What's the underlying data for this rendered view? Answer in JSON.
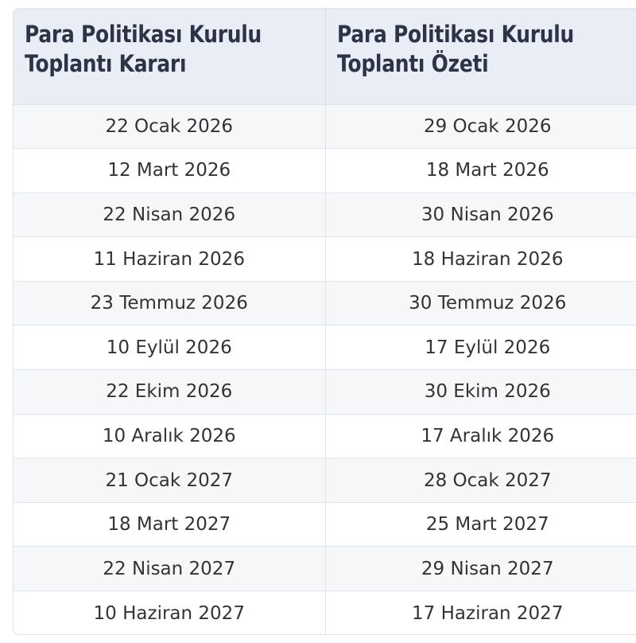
{
  "table": {
    "headers": [
      "Para Politikası Kurulu\nToplantı Kararı",
      "Para Politikası Kurulu\nToplantı Özeti"
    ],
    "rows": [
      [
        "22 Ocak 2026",
        "29 Ocak 2026"
      ],
      [
        "12 Mart 2026",
        "18 Mart 2026"
      ],
      [
        "22 Nisan 2026",
        "30 Nisan 2026"
      ],
      [
        "11 Haziran 2026",
        "18 Haziran 2026"
      ],
      [
        "23 Temmuz 2026",
        "30 Temmuz 2026"
      ],
      [
        "10 Eylül 2026",
        "17 Eylül 2026"
      ],
      [
        "22 Ekim 2026",
        "30 Ekim 2026"
      ],
      [
        "10 Aralık 2026",
        "17 Aralık 2026"
      ],
      [
        "21 Ocak 2027",
        "28 Ocak 2027"
      ],
      [
        "18 Mart 2027",
        "25 Mart 2027"
      ],
      [
        "22 Nisan 2027",
        "29 Nisan 2027"
      ],
      [
        "10 Haziran 2027",
        "17 Haziran 2027"
      ]
    ]
  },
  "colors": {
    "header_bg": "#e9edf5",
    "header_text": "#2c3446",
    "row_alt_bg": "#f6f7f9",
    "row_bg": "#ffffff",
    "border": "#dfe3ea",
    "cell_text": "#333333"
  }
}
